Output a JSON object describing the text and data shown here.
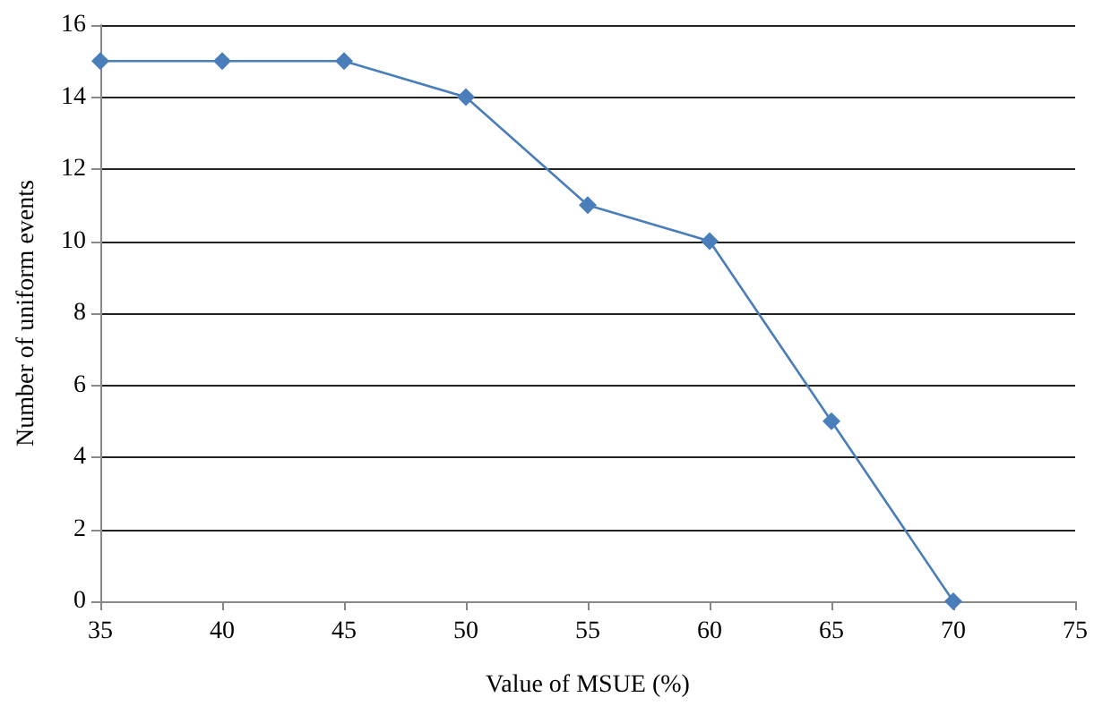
{
  "chart_data": {
    "type": "line",
    "xlabel": "Value of MSUE (%)",
    "ylabel": "Number of uniform events",
    "x": [
      35,
      40,
      45,
      50,
      55,
      60,
      65,
      70
    ],
    "series": [
      {
        "color": "#4a7ebb",
        "values": [
          15,
          15,
          15,
          14,
          11,
          10,
          5,
          0
        ]
      }
    ],
    "xlim": [
      35,
      75
    ],
    "xticks": [
      35,
      40,
      45,
      50,
      55,
      60,
      65,
      70,
      75
    ],
    "ylim": [
      0,
      16
    ],
    "yticks": [
      0,
      2,
      4,
      6,
      8,
      10,
      12,
      14,
      16
    ],
    "grid": "y",
    "marker": "diamond",
    "line_style": "solid"
  }
}
